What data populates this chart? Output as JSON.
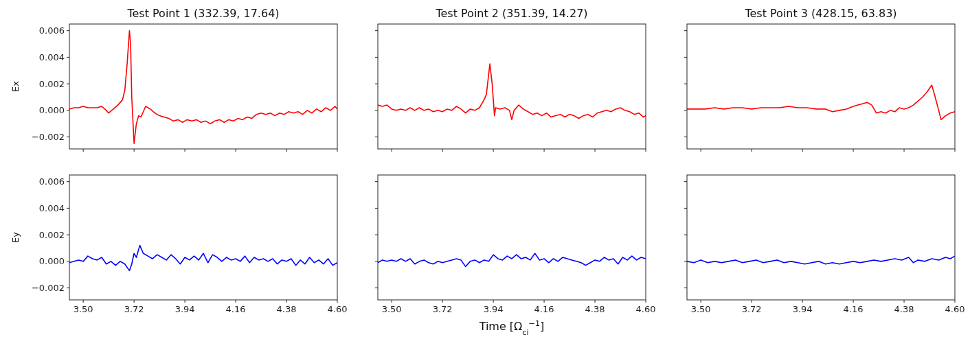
{
  "chart_data": [
    {
      "type": "line",
      "title": "Test Point 1 (332.39, 17.64)",
      "ylabel": "Ex",
      "tick_labels": "y",
      "xlim": [
        3.44,
        4.6
      ],
      "ylim": [
        -0.0029,
        0.0065
      ],
      "xticks": [
        {
          "value": 3.5,
          "label": null
        },
        {
          "value": 3.72,
          "label": null
        },
        {
          "value": 3.94,
          "label": null
        },
        {
          "value": 4.16,
          "label": null
        },
        {
          "value": 4.38,
          "label": null
        },
        {
          "value": 4.6,
          "label": null
        }
      ],
      "yticks": [
        {
          "value": -0.002,
          "label": "−0.002"
        },
        {
          "value": 0,
          "label": "0.000"
        },
        {
          "value": 0.002,
          "label": "0.002"
        },
        {
          "value": 0.004,
          "label": "0.004"
        },
        {
          "value": 0.006,
          "label": "0.006"
        }
      ],
      "series": [
        {
          "color": "#ff0000",
          "x": [
            3.44,
            3.46,
            3.48,
            3.5,
            3.52,
            3.54,
            3.56,
            3.58,
            3.6,
            3.61,
            3.63,
            3.65,
            3.67,
            3.68,
            3.69,
            3.7,
            3.705,
            3.71,
            3.72,
            3.73,
            3.74,
            3.75,
            3.77,
            3.79,
            3.81,
            3.83,
            3.85,
            3.87,
            3.89,
            3.91,
            3.93,
            3.95,
            3.97,
            3.99,
            4.01,
            4.03,
            4.05,
            4.07,
            4.09,
            4.11,
            4.13,
            4.15,
            4.17,
            4.19,
            4.21,
            4.23,
            4.25,
            4.27,
            4.29,
            4.31,
            4.33,
            4.35,
            4.37,
            4.39,
            4.41,
            4.43,
            4.45,
            4.47,
            4.49,
            4.51,
            4.53,
            4.55,
            4.57,
            4.59,
            4.6
          ],
          "values": [
            0.0001,
            0.0002,
            0.0002,
            0.0003,
            0.0002,
            0.0002,
            0.0002,
            0.0003,
            0.0,
            -0.0002,
            0.0001,
            0.0004,
            0.0008,
            0.0015,
            0.0035,
            0.006,
            0.005,
            0.001,
            -0.0025,
            -0.001,
            -0.0004,
            -0.0005,
            0.0003,
            0.0001,
            -0.0002,
            -0.0004,
            -0.0005,
            -0.0006,
            -0.0008,
            -0.0007,
            -0.0009,
            -0.0007,
            -0.0008,
            -0.0007,
            -0.0009,
            -0.0008,
            -0.001,
            -0.0008,
            -0.0007,
            -0.0009,
            -0.0007,
            -0.0008,
            -0.0006,
            -0.0007,
            -0.0005,
            -0.0006,
            -0.0003,
            -0.0002,
            -0.0003,
            -0.0002,
            -0.0004,
            -0.0002,
            -0.0003,
            -0.0001,
            -0.0002,
            -0.0001,
            -0.0003,
            0.0,
            -0.0002,
            0.0001,
            -0.0001,
            0.0002,
            0.0,
            0.0003,
            0.0001
          ]
        }
      ]
    },
    {
      "type": "line",
      "title": "Test Point 2 (351.39, 14.27)",
      "tick_labels": false,
      "xlim": [
        3.44,
        4.6
      ],
      "ylim": [
        -0.0029,
        0.0065
      ],
      "xticks": [
        {
          "value": 3.5,
          "label": null
        },
        {
          "value": 3.72,
          "label": null
        },
        {
          "value": 3.94,
          "label": null
        },
        {
          "value": 4.16,
          "label": null
        },
        {
          "value": 4.38,
          "label": null
        },
        {
          "value": 4.6,
          "label": null
        }
      ],
      "yticks": [
        {
          "value": -0.002,
          "label": null
        },
        {
          "value": 0,
          "label": null
        },
        {
          "value": 0.002,
          "label": null
        },
        {
          "value": 0.004,
          "label": null
        },
        {
          "value": 0.006,
          "label": null
        }
      ],
      "series": [
        {
          "color": "#ff0000",
          "x": [
            3.44,
            3.46,
            3.48,
            3.5,
            3.52,
            3.54,
            3.56,
            3.58,
            3.6,
            3.62,
            3.64,
            3.66,
            3.68,
            3.7,
            3.72,
            3.74,
            3.76,
            3.78,
            3.8,
            3.82,
            3.84,
            3.86,
            3.88,
            3.9,
            3.91,
            3.925,
            3.935,
            3.945,
            3.95,
            3.97,
            3.99,
            4.01,
            4.02,
            4.03,
            4.05,
            4.07,
            4.09,
            4.11,
            4.13,
            4.15,
            4.17,
            4.19,
            4.21,
            4.23,
            4.25,
            4.27,
            4.29,
            4.31,
            4.33,
            4.35,
            4.37,
            4.39,
            4.41,
            4.43,
            4.45,
            4.47,
            4.49,
            4.51,
            4.53,
            4.55,
            4.57,
            4.59,
            4.6
          ],
          "values": [
            0.0004,
            0.0003,
            0.0004,
            0.0001,
            0.0,
            0.0001,
            0.0,
            0.0002,
            0.0,
            0.0002,
            0.0,
            0.0001,
            -0.0001,
            0.0,
            -0.0001,
            0.0001,
            0.0,
            0.0003,
            0.0001,
            -0.0002,
            0.0001,
            0.0,
            0.0002,
            0.0008,
            0.0012,
            0.0035,
            0.002,
            -0.0004,
            0.0002,
            0.0001,
            0.0002,
            0.0,
            -0.0007,
            0.0,
            0.0004,
            0.0001,
            -0.0001,
            -0.0003,
            -0.0002,
            -0.0004,
            -0.0002,
            -0.0005,
            -0.0004,
            -0.0003,
            -0.0005,
            -0.0003,
            -0.0004,
            -0.0006,
            -0.0004,
            -0.0003,
            -0.0005,
            -0.0002,
            -0.0001,
            0.0,
            -0.0001,
            0.0001,
            0.0002,
            0.0,
            -0.0001,
            -0.0003,
            -0.0002,
            -0.0005,
            -0.0004
          ]
        }
      ]
    },
    {
      "type": "line",
      "title": "Test Point 3 (428.15, 63.83)",
      "tick_labels": false,
      "xlim": [
        3.44,
        4.6
      ],
      "ylim": [
        -0.0029,
        0.0065
      ],
      "xticks": [
        {
          "value": 3.5,
          "label": null
        },
        {
          "value": 3.72,
          "label": null
        },
        {
          "value": 3.94,
          "label": null
        },
        {
          "value": 4.16,
          "label": null
        },
        {
          "value": 4.38,
          "label": null
        },
        {
          "value": 4.6,
          "label": null
        }
      ],
      "yticks": [
        {
          "value": -0.002,
          "label": null
        },
        {
          "value": 0,
          "label": null
        },
        {
          "value": 0.002,
          "label": null
        },
        {
          "value": 0.004,
          "label": null
        },
        {
          "value": 0.006,
          "label": null
        }
      ],
      "series": [
        {
          "color": "#ff0000",
          "x": [
            3.44,
            3.48,
            3.52,
            3.56,
            3.6,
            3.64,
            3.68,
            3.72,
            3.76,
            3.8,
            3.84,
            3.88,
            3.92,
            3.96,
            4.0,
            4.04,
            4.07,
            4.1,
            4.13,
            4.16,
            4.18,
            4.2,
            4.22,
            4.24,
            4.26,
            4.28,
            4.3,
            4.32,
            4.34,
            4.36,
            4.38,
            4.4,
            4.42,
            4.44,
            4.46,
            4.48,
            4.5,
            4.51,
            4.53,
            4.54,
            4.56,
            4.58,
            4.6
          ],
          "values": [
            0.0001,
            0.0001,
            0.0001,
            0.0002,
            0.0001,
            0.0002,
            0.0002,
            0.0001,
            0.0002,
            0.0002,
            0.0002,
            0.0003,
            0.0002,
            0.0002,
            0.0001,
            0.0001,
            -0.0001,
            0.0,
            0.0001,
            0.0003,
            0.0004,
            0.0005,
            0.0006,
            0.0004,
            -0.0002,
            -0.0001,
            -0.0002,
            0.0,
            -0.0001,
            0.0002,
            0.0001,
            0.0002,
            0.0004,
            0.0007,
            0.001,
            0.0014,
            0.0019,
            0.0013,
            0.0,
            -0.0007,
            -0.0004,
            -0.0002,
            -0.0001
          ]
        }
      ]
    },
    {
      "type": "line",
      "ylabel": "Ey",
      "xlim": [
        3.44,
        4.6
      ],
      "ylim": [
        -0.0029,
        0.0065
      ],
      "xticks": [
        {
          "value": 3.5,
          "label": "3.50"
        },
        {
          "value": 3.72,
          "label": "3.72"
        },
        {
          "value": 3.94,
          "label": "3.94"
        },
        {
          "value": 4.16,
          "label": "4.16"
        },
        {
          "value": 4.38,
          "label": "4.38"
        },
        {
          "value": 4.6,
          "label": "4.60"
        }
      ],
      "yticks": [
        {
          "value": -0.002,
          "label": "−0.002"
        },
        {
          "value": 0,
          "label": "0.000"
        },
        {
          "value": 0.002,
          "label": "0.002"
        },
        {
          "value": 0.004,
          "label": "0.004"
        },
        {
          "value": 0.006,
          "label": "0.006"
        }
      ],
      "series": [
        {
          "color": "#0000ff",
          "x": [
            3.44,
            3.46,
            3.48,
            3.5,
            3.52,
            3.54,
            3.56,
            3.58,
            3.6,
            3.62,
            3.64,
            3.66,
            3.68,
            3.7,
            3.71,
            3.72,
            3.73,
            3.745,
            3.76,
            3.78,
            3.8,
            3.82,
            3.84,
            3.86,
            3.88,
            3.9,
            3.92,
            3.94,
            3.96,
            3.98,
            4.0,
            4.02,
            4.04,
            4.06,
            4.08,
            4.1,
            4.12,
            4.14,
            4.16,
            4.18,
            4.2,
            4.22,
            4.24,
            4.26,
            4.28,
            4.3,
            4.32,
            4.34,
            4.36,
            4.38,
            4.4,
            4.42,
            4.44,
            4.46,
            4.48,
            4.5,
            4.52,
            4.54,
            4.56,
            4.58,
            4.6
          ],
          "values": [
            -0.0001,
            0.0,
            0.0001,
            0.0,
            0.0004,
            0.0002,
            0.0001,
            0.0003,
            -0.0002,
            0.0,
            -0.0003,
            0.0,
            -0.0002,
            -0.0007,
            -0.0002,
            0.0006,
            0.0003,
            0.0012,
            0.0006,
            0.0004,
            0.0002,
            0.0005,
            0.0003,
            0.0001,
            0.0005,
            0.0002,
            -0.0002,
            0.0003,
            0.0001,
            0.0004,
            0.0001,
            0.0006,
            -0.0001,
            0.0005,
            0.0003,
            0.0,
            0.0003,
            0.0001,
            0.0002,
            0.0,
            0.0004,
            -0.0001,
            0.0003,
            0.0001,
            0.0002,
            0.0,
            0.0002,
            -0.0002,
            0.0001,
            0.0,
            0.0002,
            -0.0003,
            0.0001,
            -0.0002,
            0.0003,
            -0.0001,
            0.0001,
            -0.0002,
            0.0002,
            -0.0003,
            -0.0001
          ]
        }
      ]
    },
    {
      "type": "line",
      "xlabel": "Time [Ω$_{ci}$$^{−1}$]",
      "tick_labels": "x",
      "xlim": [
        3.44,
        4.6
      ],
      "ylim": [
        -0.0029,
        0.0065
      ],
      "xticks": [
        {
          "value": 3.5,
          "label": "3.50"
        },
        {
          "value": 3.72,
          "label": "3.72"
        },
        {
          "value": 3.94,
          "label": "3.94"
        },
        {
          "value": 4.16,
          "label": "4.16"
        },
        {
          "value": 4.38,
          "label": "4.38"
        },
        {
          "value": 4.6,
          "label": "4.60"
        }
      ],
      "yticks": [
        {
          "value": -0.002,
          "label": null
        },
        {
          "value": 0,
          "label": null
        },
        {
          "value": 0.002,
          "label": null
        },
        {
          "value": 0.004,
          "label": null
        },
        {
          "value": 0.006,
          "label": null
        }
      ],
      "series": [
        {
          "color": "#0000ff",
          "x": [
            3.44,
            3.46,
            3.48,
            3.5,
            3.52,
            3.54,
            3.56,
            3.58,
            3.6,
            3.62,
            3.64,
            3.66,
            3.68,
            3.7,
            3.72,
            3.74,
            3.76,
            3.78,
            3.8,
            3.82,
            3.84,
            3.86,
            3.88,
            3.9,
            3.92,
            3.94,
            3.96,
            3.98,
            4.0,
            4.02,
            4.04,
            4.06,
            4.08,
            4.1,
            4.12,
            4.14,
            4.16,
            4.18,
            4.2,
            4.22,
            4.24,
            4.26,
            4.28,
            4.3,
            4.32,
            4.34,
            4.36,
            4.38,
            4.4,
            4.42,
            4.44,
            4.46,
            4.48,
            4.5,
            4.52,
            4.54,
            4.56,
            4.58,
            4.6
          ],
          "values": [
            -0.0001,
            0.0001,
            0.0,
            0.0001,
            0.0,
            0.0002,
            0.0,
            0.0002,
            -0.0002,
            0.0,
            0.0001,
            -0.0001,
            -0.0002,
            0.0,
            -0.0001,
            0.0,
            0.0001,
            0.0002,
            0.0001,
            -0.0004,
            0.0,
            0.0001,
            -0.0001,
            0.0001,
            0.0,
            0.0005,
            0.0002,
            0.0001,
            0.0004,
            0.0002,
            0.0005,
            0.0002,
            0.0003,
            0.0001,
            0.0006,
            0.0001,
            0.0002,
            -0.0001,
            0.0002,
            0.0,
            0.0003,
            0.0002,
            0.0001,
            0.0,
            -0.0001,
            -0.0003,
            -0.0001,
            0.0001,
            0.0,
            0.0003,
            0.0001,
            0.0002,
            -0.0002,
            0.0003,
            0.0001,
            0.0004,
            0.0001,
            0.0003,
            0.0002
          ]
        }
      ]
    },
    {
      "type": "line",
      "tick_labels": "x",
      "xlim": [
        3.44,
        4.6
      ],
      "ylim": [
        -0.0029,
        0.0065
      ],
      "xticks": [
        {
          "value": 3.5,
          "label": "3.50"
        },
        {
          "value": 3.72,
          "label": "3.72"
        },
        {
          "value": 3.94,
          "label": "3.94"
        },
        {
          "value": 4.16,
          "label": "4.16"
        },
        {
          "value": 4.38,
          "label": "4.38"
        },
        {
          "value": 4.6,
          "label": "4.60"
        }
      ],
      "yticks": [
        {
          "value": -0.002,
          "label": null
        },
        {
          "value": 0,
          "label": null
        },
        {
          "value": 0.002,
          "label": null
        },
        {
          "value": 0.004,
          "label": null
        },
        {
          "value": 0.006,
          "label": null
        }
      ],
      "series": [
        {
          "color": "#0000ff",
          "x": [
            3.44,
            3.47,
            3.5,
            3.53,
            3.56,
            3.59,
            3.62,
            3.65,
            3.68,
            3.71,
            3.74,
            3.77,
            3.8,
            3.83,
            3.86,
            3.89,
            3.92,
            3.95,
            3.98,
            4.01,
            4.04,
            4.07,
            4.1,
            4.13,
            4.16,
            4.19,
            4.22,
            4.25,
            4.28,
            4.31,
            4.34,
            4.37,
            4.4,
            4.42,
            4.44,
            4.47,
            4.5,
            4.53,
            4.56,
            4.58,
            4.6
          ],
          "values": [
            0.0,
            -0.0001,
            0.0001,
            -0.0001,
            0.0,
            -0.0001,
            0.0,
            0.0001,
            -0.0001,
            0.0,
            0.0001,
            -0.0001,
            0.0,
            0.0001,
            -0.0001,
            0.0,
            -0.0001,
            -0.0002,
            -0.0001,
            0.0,
            -0.0002,
            -0.0001,
            -0.0002,
            -0.0001,
            0.0,
            -0.0001,
            0.0,
            0.0001,
            0.0,
            0.0001,
            0.0002,
            0.0001,
            0.0003,
            -0.0001,
            0.0001,
            0.0,
            0.0002,
            0.0001,
            0.0003,
            0.0002,
            0.0004
          ]
        }
      ]
    }
  ]
}
